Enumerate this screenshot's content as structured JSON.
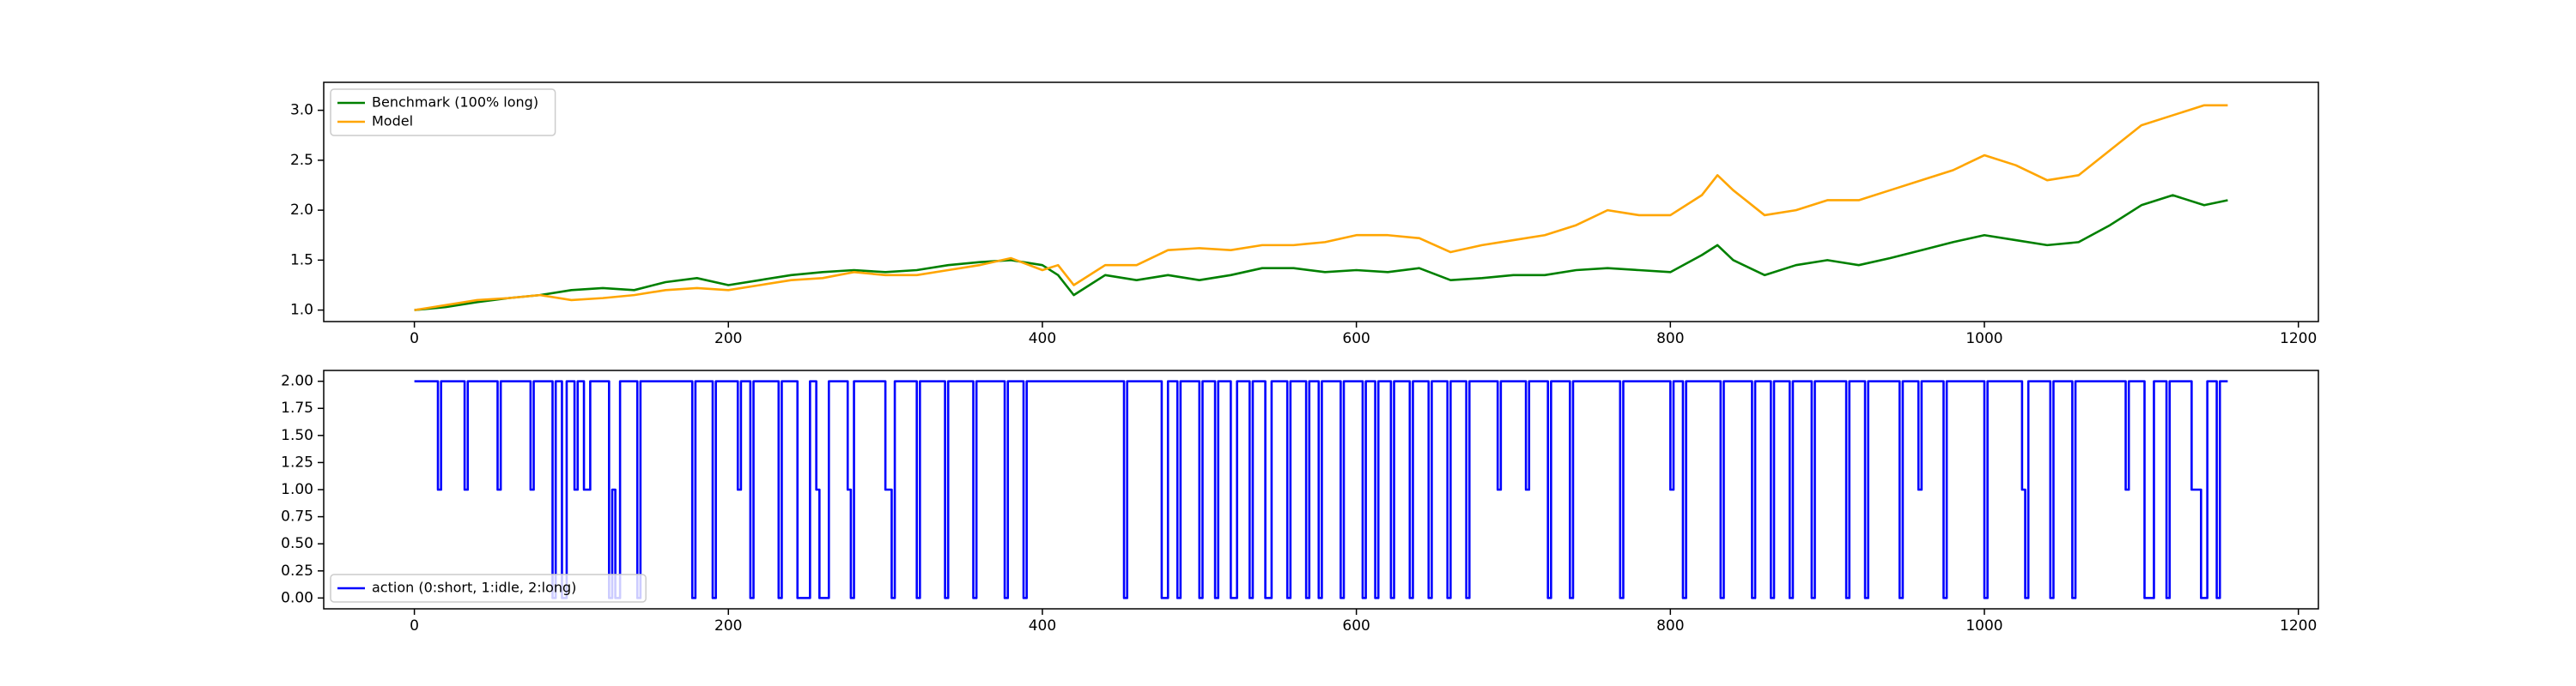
{
  "chart_data": [
    {
      "type": "line",
      "legend": "upper left",
      "x": [
        0,
        20,
        40,
        60,
        80,
        100,
        120,
        140,
        160,
        180,
        200,
        220,
        240,
        260,
        280,
        300,
        320,
        340,
        360,
        380,
        400,
        410,
        420,
        440,
        460,
        480,
        500,
        520,
        540,
        560,
        580,
        600,
        620,
        640,
        660,
        680,
        700,
        720,
        740,
        760,
        780,
        800,
        820,
        830,
        840,
        860,
        880,
        900,
        920,
        940,
        960,
        980,
        1000,
        1020,
        1040,
        1060,
        1080,
        1100,
        1120,
        1140,
        1155
      ],
      "series": [
        {
          "name": "Benchmark (100% long)",
          "color": "#008000",
          "values": [
            1.0,
            1.03,
            1.08,
            1.12,
            1.15,
            1.2,
            1.22,
            1.2,
            1.28,
            1.32,
            1.25,
            1.3,
            1.35,
            1.38,
            1.4,
            1.38,
            1.4,
            1.45,
            1.48,
            1.5,
            1.45,
            1.35,
            1.15,
            1.35,
            1.3,
            1.35,
            1.3,
            1.35,
            1.42,
            1.42,
            1.38,
            1.4,
            1.38,
            1.42,
            1.3,
            1.32,
            1.35,
            1.35,
            1.4,
            1.42,
            1.4,
            1.38,
            1.55,
            1.65,
            1.5,
            1.35,
            1.45,
            1.5,
            1.45,
            1.52,
            1.6,
            1.68,
            1.75,
            1.7,
            1.65,
            1.68,
            1.85,
            2.05,
            2.15,
            2.05,
            2.1
          ]
        },
        {
          "name": "Model",
          "color": "#ffa500",
          "values": [
            1.0,
            1.05,
            1.1,
            1.12,
            1.15,
            1.1,
            1.12,
            1.15,
            1.2,
            1.22,
            1.2,
            1.25,
            1.3,
            1.32,
            1.38,
            1.35,
            1.35,
            1.4,
            1.45,
            1.52,
            1.4,
            1.45,
            1.25,
            1.45,
            1.45,
            1.6,
            1.62,
            1.6,
            1.65,
            1.65,
            1.68,
            1.75,
            1.75,
            1.72,
            1.58,
            1.65,
            1.7,
            1.75,
            1.85,
            2.0,
            1.95,
            1.95,
            2.15,
            2.35,
            2.2,
            1.95,
            2.0,
            2.1,
            2.1,
            2.2,
            2.3,
            2.4,
            2.55,
            2.45,
            2.3,
            2.35,
            2.6,
            2.85,
            2.95,
            3.05,
            3.05
          ]
        }
      ],
      "xlim": [
        -57.75,
        1212.75
      ],
      "xticks": [
        0,
        200,
        400,
        600,
        800,
        1000,
        1200
      ],
      "ylim": [
        0.885,
        3.28
      ],
      "yticks": [
        {
          "value": 1,
          "label": "1.0"
        },
        {
          "value": 1.5,
          "label": "1.5"
        },
        {
          "value": 2,
          "label": "2.0"
        },
        {
          "value": 2.5,
          "label": "2.5"
        },
        {
          "value": 3,
          "label": "3.0"
        }
      ]
    },
    {
      "type": "step",
      "legend": "lower left",
      "x": [
        0,
        15,
        17,
        32,
        34,
        53,
        55,
        74,
        76,
        88,
        90,
        94,
        97,
        102,
        104,
        108,
        112,
        124,
        126,
        128,
        131,
        142,
        144,
        177,
        179,
        190,
        192,
        206,
        208,
        214,
        216,
        232,
        234,
        244,
        252,
        256,
        258,
        264,
        276,
        278,
        280,
        300,
        304,
        306,
        320,
        322,
        338,
        340,
        356,
        358,
        376,
        378,
        388,
        390,
        452,
        454,
        476,
        480,
        486,
        488,
        500,
        502,
        510,
        512,
        520,
        524,
        532,
        534,
        542,
        546,
        556,
        558,
        568,
        570,
        576,
        578,
        590,
        592,
        604,
        606,
        612,
        614,
        622,
        624,
        634,
        636,
        646,
        648,
        658,
        660,
        670,
        672,
        690,
        692,
        708,
        710,
        722,
        724,
        736,
        738,
        768,
        770,
        800,
        802,
        808,
        810,
        832,
        834,
        852,
        854,
        864,
        866,
        876,
        878,
        890,
        892,
        912,
        914,
        924,
        926,
        946,
        948,
        958,
        960,
        974,
        976,
        1000,
        1002,
        1024,
        1026,
        1028,
        1042,
        1044,
        1056,
        1058,
        1090,
        1092,
        1102,
        1108,
        1116,
        1118,
        1132,
        1138,
        1142,
        1148,
        1150,
        1155
      ],
      "series": [
        {
          "name": "action (0:short, 1:idle, 2:long)",
          "color": "#0000ff",
          "values": [
            2,
            1,
            2,
            1,
            2,
            1,
            2,
            1,
            2,
            0,
            2,
            0,
            2,
            1,
            2,
            1,
            2,
            0,
            1,
            0,
            2,
            0,
            2,
            0,
            2,
            0,
            2,
            1,
            2,
            0,
            2,
            0,
            2,
            0,
            2,
            1,
            0,
            2,
            1,
            0,
            2,
            1,
            0,
            2,
            0,
            2,
            0,
            2,
            0,
            2,
            0,
            2,
            0,
            2,
            0,
            2,
            0,
            2,
            0,
            2,
            0,
            2,
            0,
            2,
            0,
            2,
            0,
            2,
            0,
            2,
            0,
            2,
            0,
            2,
            0,
            2,
            0,
            2,
            0,
            2,
            0,
            2,
            0,
            2,
            0,
            2,
            0,
            2,
            0,
            2,
            0,
            2,
            1,
            2,
            1,
            2,
            0,
            2,
            0,
            2,
            0,
            2,
            1,
            2,
            0,
            2,
            0,
            2,
            0,
            2,
            0,
            2,
            0,
            2,
            0,
            2,
            0,
            2,
            0,
            2,
            0,
            2,
            1,
            2,
            0,
            2,
            0,
            2,
            1,
            0,
            2,
            0,
            2,
            0,
            2,
            1,
            2,
            0,
            2,
            0,
            2,
            1,
            0,
            2,
            0,
            2,
            2
          ]
        }
      ],
      "xlim": [
        -57.75,
        1212.75
      ],
      "xticks": [
        0,
        200,
        400,
        600,
        800,
        1000,
        1200
      ],
      "ylim": [
        -0.1,
        2.1
      ],
      "yticks": [
        {
          "value": 0,
          "label": "0.00"
        },
        {
          "value": 0.25,
          "label": "0.25"
        },
        {
          "value": 0.5,
          "label": "0.50"
        },
        {
          "value": 0.75,
          "label": "0.75"
        },
        {
          "value": 1,
          "label": "1.00"
        },
        {
          "value": 1.25,
          "label": "1.25"
        },
        {
          "value": 1.5,
          "label": "1.50"
        },
        {
          "value": 1.75,
          "label": "1.75"
        },
        {
          "value": 2,
          "label": "2.00"
        }
      ]
    }
  ]
}
